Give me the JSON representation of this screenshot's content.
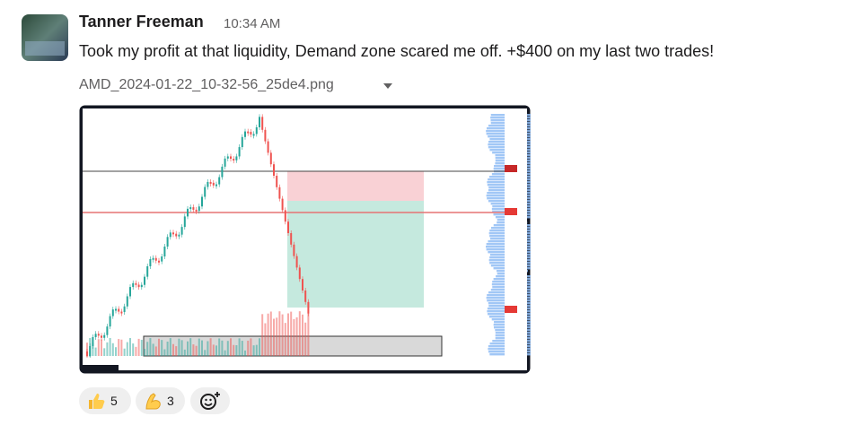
{
  "message": {
    "author": "Tanner Freeman",
    "time": "10:34 AM",
    "text": "Took my profit at that liquidity, Demand zone scared me off. +$400 on my last two trades!",
    "attachment": {
      "filename": "AMD_2024-01-22_10-32-56_25de4.png"
    },
    "reactions": [
      {
        "count": "5"
      },
      {
        "count": "3"
      }
    ]
  }
}
